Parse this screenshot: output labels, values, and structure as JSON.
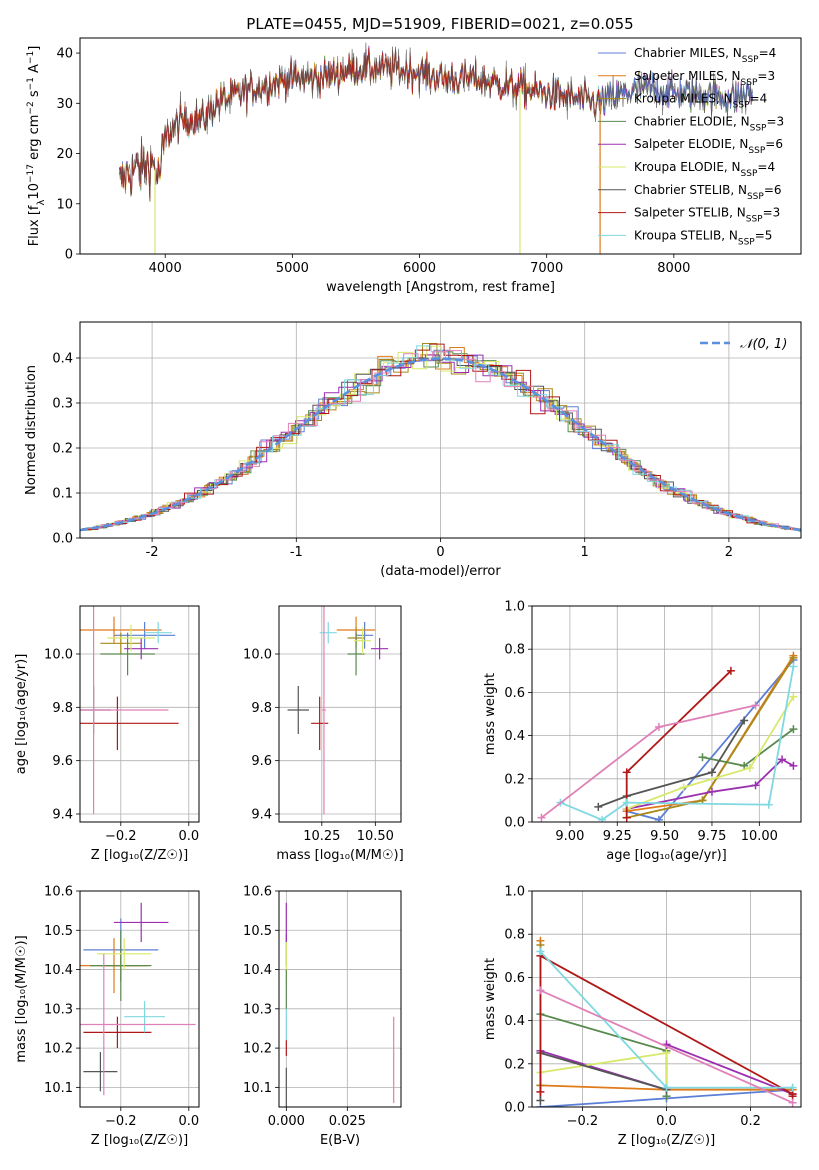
{
  "colors": {
    "Chabrier MILES": "#5b7fd6",
    "Salpeter MILES": "#e07b1a",
    "Kroupa MILES": "#a8891a",
    "Chabrier ELODIE": "#5a8a50",
    "Salpeter ELODIE": "#9b30b0",
    "Kroupa ELODIE": "#d8e86a",
    "Chabrier STELIB": "#555555",
    "Salpeter STELIB": "#b01818",
    "Kroupa STELIB": "#80d8e0",
    "pink": "#e080b8",
    "normal": "#5b8fe0"
  },
  "chart_data": [
    {
      "id": "spectrum",
      "type": "line",
      "title": "PLATE=0455, MJD=51909, FIBERID=0021, z=0.055",
      "xlabel": "wavelength [Angstrom, rest frame]",
      "ylabel": "Flux [f_λ10^-17 erg cm^-2 s^-1 A^-1]",
      "ylabel_parts": [
        "Flux [f",
        "λ",
        "10",
        "−17",
        " erg cm",
        "−2",
        " s",
        "−1",
        " A",
        "−1",
        "]"
      ],
      "xlim": [
        3330,
        9000
      ],
      "ylim": [
        0,
        43
      ],
      "xticks": [
        4000,
        5000,
        6000,
        7000,
        8000
      ],
      "yticks": [
        0,
        10,
        20,
        30,
        40
      ],
      "legend_loc": "upper right",
      "series": [
        {
          "name": "Chabrier MILES, N_SSP=4",
          "label": "Chabrier MILES, N",
          "sub": "SSP",
          "eq": "=4",
          "color_key": "Chabrier MILES"
        },
        {
          "name": "Salpeter MILES, N_SSP=3",
          "label": "Salpeter MILES, N",
          "sub": "SSP",
          "eq": "=3",
          "color_key": "Salpeter MILES"
        },
        {
          "name": "Kroupa MILES, N_SSP=4",
          "label": "Kroupa MILES, N",
          "sub": "SSP",
          "eq": "=4",
          "color_key": "Kroupa MILES"
        },
        {
          "name": "Chabrier ELODIE, N_SSP=3",
          "label": "Chabrier ELODIE, N",
          "sub": "SSP",
          "eq": "=3",
          "color_key": "Chabrier ELODIE"
        },
        {
          "name": "Salpeter ELODIE, N_SSP=6",
          "label": "Salpeter ELODIE, N",
          "sub": "SSP",
          "eq": "=6",
          "color_key": "Salpeter ELODIE"
        },
        {
          "name": "Kroupa ELODIE, N_SSP=4",
          "label": "Kroupa ELODIE, N",
          "sub": "SSP",
          "eq": "=4",
          "color_key": "Kroupa ELODIE"
        },
        {
          "name": "Chabrier STELIB, N_SSP=6",
          "label": "Chabrier STELIB, N",
          "sub": "SSP",
          "eq": "=6",
          "color_key": "Chabrier STELIB"
        },
        {
          "name": "Salpeter STELIB, N_SSP=3",
          "label": "Salpeter STELIB, N",
          "sub": "SSP",
          "eq": "=3",
          "color_key": "Salpeter STELIB"
        },
        {
          "name": "Kroupa STELIB, N_SSP=5",
          "label": "Kroupa STELIB, N",
          "sub": "SSP",
          "eq": "=5",
          "color_key": "Kroupa STELIB"
        }
      ],
      "continuum": {
        "x": [
          3640,
          3700,
          3800,
          3900,
          3950,
          4000,
          4100,
          4200,
          4300,
          4400,
          4500,
          4700,
          5000,
          5200,
          5500,
          5800,
          6000,
          6200,
          6400,
          6600,
          6800,
          7000,
          7200,
          7400,
          7600,
          7800,
          8000,
          8200,
          8400,
          8600
        ],
        "y": [
          14,
          16,
          17,
          18,
          15,
          23,
          26,
          27,
          27,
          30,
          31,
          33,
          35,
          35,
          37,
          37,
          36,
          35,
          35,
          34,
          33,
          32,
          31,
          30,
          32,
          33,
          32,
          32,
          31,
          32
        ]
      },
      "drops": [
        {
          "color_key": "Kroupa ELODIE",
          "x": 3920
        },
        {
          "color_key": "Kroupa ELODIE",
          "x": 6790
        },
        {
          "color_key": "Salpeter MILES",
          "x": 7420
        }
      ]
    },
    {
      "id": "residuals",
      "type": "step",
      "xlabel": "(data-model)/error",
      "ylabel": "Normed distribution",
      "xlim": [
        -2.5,
        2.5
      ],
      "ylim": [
        0,
        0.48
      ],
      "xticks": [
        -2,
        -1,
        0,
        1,
        2
      ],
      "yticks": [
        0.0,
        0.1,
        0.2,
        0.3,
        0.4
      ],
      "ytick_labels": [
        "0.0",
        "0.1",
        "0.2",
        "0.3",
        "0.4"
      ],
      "normal_label": "𝒩(0, 1)",
      "legend_loc": "upper right"
    },
    {
      "id": "age_vs_z",
      "type": "scatter",
      "xlabel": "Z [log₁₀(Z/Z☉)]",
      "ylabel": "age  [log₁₀(age/yr)]",
      "xlim": [
        -0.32,
        0.03
      ],
      "ylim": [
        9.37,
        10.18
      ],
      "xticks": [
        -0.2,
        0.0
      ],
      "xtick_labels": [
        "−0.2",
        "0.0"
      ],
      "yticks": [
        9.4,
        9.6,
        9.8,
        10.0
      ],
      "ytick_labels": [
        "9.4",
        "9.6",
        "9.8",
        "10.0"
      ],
      "points": [
        {
          "color_key": "Chabrier MILES",
          "x": -0.13,
          "y": 10.07,
          "xerr": 0.09,
          "yerr": 0.05
        },
        {
          "color_key": "Salpeter MILES",
          "x": -0.22,
          "y": 10.09,
          "xerr": 0.14,
          "yerr": 0.05
        },
        {
          "color_key": "Kroupa MILES",
          "x": -0.2,
          "y": 10.04,
          "xerr": 0.06,
          "yerr": 0.04
        },
        {
          "color_key": "Chabrier ELODIE",
          "x": -0.18,
          "y": 10.0,
          "xerr": 0.08,
          "yerr": 0.08
        },
        {
          "color_key": "Salpeter ELODIE",
          "x": -0.14,
          "y": 10.02,
          "xerr": 0.05,
          "yerr": 0.04
        },
        {
          "color_key": "Kroupa ELODIE",
          "x": -0.17,
          "y": 10.06,
          "xerr": 0.07,
          "yerr": 0.05
        },
        {
          "color_key": "Chabrier STELIB",
          "x": -0.28,
          "y": 9.79,
          "xerr": 0.05,
          "yerr": 0.09
        },
        {
          "color_key": "Salpeter STELIB",
          "x": -0.21,
          "y": 9.74,
          "xerr": 0.18,
          "yerr": 0.1
        },
        {
          "color_key": "Kroupa STELIB",
          "x": -0.09,
          "y": 10.08,
          "xerr": 0.04,
          "yerr": 0.04
        },
        {
          "color_key": "pink",
          "x": -0.28,
          "y": 9.79,
          "xerr": 0.22,
          "yerr": 0.39
        }
      ]
    },
    {
      "id": "age_vs_mass",
      "type": "scatter",
      "xlabel": "mass [log₁₀(M/M☉)]",
      "xlim": [
        10.05,
        10.62
      ],
      "ylim": [
        9.37,
        10.18
      ],
      "xticks": [
        10.25,
        10.5
      ],
      "xtick_labels": [
        "10.25",
        "10.50"
      ],
      "yticks": [
        9.4,
        9.6,
        9.8,
        10.0
      ],
      "ytick_labels": [
        "9.4",
        "9.6",
        "9.8",
        "10.0"
      ],
      "points": [
        {
          "color_key": "Chabrier MILES",
          "x": 10.45,
          "y": 10.07,
          "xerr": 0.04,
          "yerr": 0.05
        },
        {
          "color_key": "Salpeter MILES",
          "x": 10.41,
          "y": 10.09,
          "xerr": 0.09,
          "yerr": 0.05
        },
        {
          "color_key": "Kroupa MILES",
          "x": 10.41,
          "y": 10.06,
          "xerr": 0.04,
          "yerr": 0.04
        },
        {
          "color_key": "Chabrier ELODIE",
          "x": 10.41,
          "y": 10.0,
          "xerr": 0.04,
          "yerr": 0.08
        },
        {
          "color_key": "Salpeter ELODIE",
          "x": 10.52,
          "y": 10.02,
          "xerr": 0.04,
          "yerr": 0.04
        },
        {
          "color_key": "Kroupa ELODIE",
          "x": 10.44,
          "y": 10.05,
          "xerr": 0.04,
          "yerr": 0.05
        },
        {
          "color_key": "Chabrier STELIB",
          "x": 10.14,
          "y": 9.79,
          "xerr": 0.05,
          "yerr": 0.09
        },
        {
          "color_key": "Salpeter STELIB",
          "x": 10.24,
          "y": 9.74,
          "xerr": 0.04,
          "yerr": 0.1
        },
        {
          "color_key": "Kroupa STELIB",
          "x": 10.28,
          "y": 10.08,
          "xerr": 0.04,
          "yerr": 0.04
        },
        {
          "color_key": "pink",
          "x": 10.26,
          "y": 9.79,
          "xerr": 0.01,
          "yerr": 0.39
        }
      ]
    },
    {
      "id": "mass_weight_vs_age",
      "type": "line",
      "xlabel": "age  [log₁₀(age/yr)]",
      "ylabel": "mass weight",
      "xlim": [
        8.8,
        10.22
      ],
      "ylim": [
        0,
        1
      ],
      "xticks": [
        9.0,
        9.25,
        9.5,
        9.75,
        10.0
      ],
      "xtick_labels": [
        "9.00",
        "9.25",
        "9.50",
        "9.75",
        "10.00"
      ],
      "yticks": [
        0,
        0.2,
        0.4,
        0.6,
        0.8,
        1.0
      ],
      "ytick_labels": [
        "0.0",
        "0.2",
        "0.4",
        "0.6",
        "0.8",
        "1.0"
      ],
      "series": [
        {
          "color_key": "Chabrier MILES",
          "x": [
            9.3,
            9.47,
            10.18
          ],
          "y": [
            0.05,
            0.01,
            0.75
          ]
        },
        {
          "color_key": "Salpeter MILES",
          "x": [
            9.3,
            9.7,
            10.18
          ],
          "y": [
            0.05,
            0.1,
            0.77
          ]
        },
        {
          "color_key": "Kroupa MILES",
          "x": [
            9.3,
            9.7,
            10.18
          ],
          "y": [
            0.02,
            0.1,
            0.76
          ]
        },
        {
          "color_key": "Chabrier ELODIE",
          "x": [
            9.7,
            9.92,
            10.18
          ],
          "y": [
            0.3,
            0.26,
            0.43
          ]
        },
        {
          "color_key": "Salpeter ELODIE",
          "x": [
            9.3,
            9.75,
            9.98,
            10.12,
            10.18
          ],
          "y": [
            0.06,
            0.14,
            0.17,
            0.29,
            0.26
          ]
        },
        {
          "color_key": "Kroupa ELODIE",
          "x": [
            9.3,
            9.6,
            9.95,
            10.18
          ],
          "y": [
            0.06,
            0.16,
            0.25,
            0.58
          ]
        },
        {
          "color_key": "Chabrier STELIB",
          "x": [
            9.15,
            9.3,
            9.75,
            9.92
          ],
          "y": [
            0.07,
            0.12,
            0.23,
            0.47
          ]
        },
        {
          "color_key": "Salpeter STELIB",
          "x": [
            9.3,
            9.3,
            9.85
          ],
          "y": [
            0.02,
            0.23,
            0.7
          ]
        },
        {
          "color_key": "Kroupa STELIB",
          "x": [
            8.95,
            9.17,
            9.3,
            10.05,
            10.18
          ],
          "y": [
            0.09,
            0.01,
            0.09,
            0.08,
            0.72
          ]
        },
        {
          "color_key": "pink",
          "x": [
            8.85,
            9.47,
            9.98
          ],
          "y": [
            0.02,
            0.44,
            0.54
          ]
        }
      ]
    },
    {
      "id": "mass_vs_z",
      "type": "scatter",
      "xlabel": "Z [log₁₀(Z/Z☉)]",
      "ylabel": "mass [log₁₀(M/M☉)]",
      "xlim": [
        -0.32,
        0.03
      ],
      "ylim": [
        10.05,
        10.6
      ],
      "xticks": [
        -0.2,
        0.0
      ],
      "xtick_labels": [
        "−0.2",
        "0.0"
      ],
      "yticks": [
        10.1,
        10.2,
        10.3,
        10.4,
        10.5,
        10.6
      ],
      "ytick_labels": [
        "10.1",
        "10.2",
        "10.3",
        "10.4",
        "10.5",
        "10.6"
      ],
      "points": [
        {
          "color_key": "Chabrier MILES",
          "x": -0.2,
          "y": 10.45,
          "xerr": 0.11,
          "yerr": 0.08
        },
        {
          "color_key": "Salpeter MILES",
          "x": -0.22,
          "y": 10.41,
          "xerr": 0.1,
          "yerr": 0.07
        },
        {
          "color_key": "Kroupa MILES",
          "x": -0.2,
          "y": 10.41,
          "xerr": 0.06,
          "yerr": 0.04
        },
        {
          "color_key": "Chabrier ELODIE",
          "x": -0.2,
          "y": 10.41,
          "xerr": 0.09,
          "yerr": 0.09
        },
        {
          "color_key": "Salpeter ELODIE",
          "x": -0.14,
          "y": 10.52,
          "xerr": 0.08,
          "yerr": 0.05
        },
        {
          "color_key": "Kroupa ELODIE",
          "x": -0.19,
          "y": 10.44,
          "xerr": 0.08,
          "yerr": 0.04
        },
        {
          "color_key": "Chabrier STELIB",
          "x": -0.26,
          "y": 10.14,
          "xerr": 0.05,
          "yerr": 0.05
        },
        {
          "color_key": "Salpeter STELIB",
          "x": -0.21,
          "y": 10.24,
          "xerr": 0.1,
          "yerr": 0.04
        },
        {
          "color_key": "Kroupa STELIB",
          "x": -0.13,
          "y": 10.28,
          "xerr": 0.06,
          "yerr": 0.04
        },
        {
          "color_key": "pink",
          "x": -0.25,
          "y": 10.26,
          "xerr": 0.27,
          "yerr": 0.18
        }
      ]
    },
    {
      "id": "mass_vs_ebv",
      "type": "scatter",
      "xlabel": "E(B-V)",
      "xlim": [
        -0.003,
        0.047
      ],
      "ylim": [
        10.05,
        10.6
      ],
      "xticks": [
        0.0,
        0.025
      ],
      "xtick_labels": [
        "0.000",
        "0.025"
      ],
      "yticks": [
        10.1,
        10.2,
        10.3,
        10.4,
        10.5,
        10.6
      ],
      "ytick_labels": [
        "10.1",
        "10.2",
        "10.3",
        "10.4",
        "10.5",
        "10.6"
      ],
      "points": [
        {
          "color_key": "Chabrier MILES",
          "x": 0.0,
          "y": 10.45,
          "xerr": 0,
          "yerr": 0.04
        },
        {
          "color_key": "Salpeter ELODIE",
          "x": 0.0,
          "y": 10.52,
          "xerr": 0,
          "yerr": 0.05
        },
        {
          "color_key": "Kroupa ELODIE",
          "x": 0.0,
          "y": 10.42,
          "xerr": 0,
          "yerr": 0.05
        },
        {
          "color_key": "Chabrier ELODIE",
          "x": 0.0,
          "y": 10.35,
          "xerr": 0,
          "yerr": 0.05
        },
        {
          "color_key": "Kroupa STELIB",
          "x": 0.0,
          "y": 10.26,
          "xerr": 0,
          "yerr": 0.04
        },
        {
          "color_key": "Salpeter STELIB",
          "x": 0.0,
          "y": 10.2,
          "xerr": 0,
          "yerr": 0.02
        },
        {
          "color_key": "Chabrier STELIB",
          "x": 0.0,
          "y": 10.1,
          "xerr": 0,
          "yerr": 0.05
        },
        {
          "color_key": "pink",
          "x": 0.044,
          "y": 10.17,
          "xerr": 0,
          "yerr": 0.11
        }
      ]
    },
    {
      "id": "mass_weight_vs_z",
      "type": "line",
      "xlabel": "Z [log₁₀(Z/Z☉)]",
      "ylabel": "mass weight",
      "xlim": [
        -0.32,
        0.32
      ],
      "ylim": [
        0,
        1
      ],
      "xticks": [
        -0.2,
        0.0,
        0.2
      ],
      "xtick_labels": [
        "−0.2",
        "0.0",
        "0.2"
      ],
      "yticks": [
        0,
        0.2,
        0.4,
        0.6,
        0.8,
        1.0
      ],
      "ytick_labels": [
        "0.0",
        "0.2",
        "0.4",
        "0.6",
        "0.8",
        "1.0"
      ],
      "series": [
        {
          "color_key": "Chabrier MILES",
          "x": [
            -0.3,
            0.0,
            0.3
          ],
          "y": [
            0.0,
            0.04,
            0.08
          ]
        },
        {
          "color_key": "Salpeter MILES",
          "x": [
            -0.3,
            -0.3,
            0.0,
            0.3
          ],
          "y": [
            0.77,
            0.1,
            0.08,
            0.08
          ]
        },
        {
          "color_key": "Kroupa MILES",
          "x": [
            -0.3,
            -0.3
          ],
          "y": [
            0.75,
            0.1
          ]
        },
        {
          "color_key": "Chabrier ELODIE",
          "x": [
            -0.3,
            0.0,
            0.0
          ],
          "y": [
            0.43,
            0.26,
            0.05
          ]
        },
        {
          "color_key": "Salpeter ELODIE",
          "x": [
            -0.3,
            0.0,
            0.0,
            0.3
          ],
          "y": [
            0.26,
            0.08,
            0.29,
            0.06
          ]
        },
        {
          "color_key": "Kroupa ELODIE",
          "x": [
            -0.3,
            0.0,
            0.0
          ],
          "y": [
            0.16,
            0.25,
            0.08
          ]
        },
        {
          "color_key": "Chabrier STELIB",
          "x": [
            -0.3,
            -0.3,
            0.0
          ],
          "y": [
            0.03,
            0.25,
            0.08
          ]
        },
        {
          "color_key": "Salpeter STELIB",
          "x": [
            -0.3,
            -0.3,
            0.3,
            0.3
          ],
          "y": [
            0.07,
            0.7,
            0.06,
            0.05
          ]
        },
        {
          "color_key": "Kroupa STELIB",
          "x": [
            -0.3,
            0.0,
            0.3
          ],
          "y": [
            0.72,
            0.09,
            0.09
          ]
        },
        {
          "color_key": "pink",
          "x": [
            -0.3,
            0.3
          ],
          "y": [
            0.54,
            0.02
          ]
        }
      ]
    }
  ]
}
